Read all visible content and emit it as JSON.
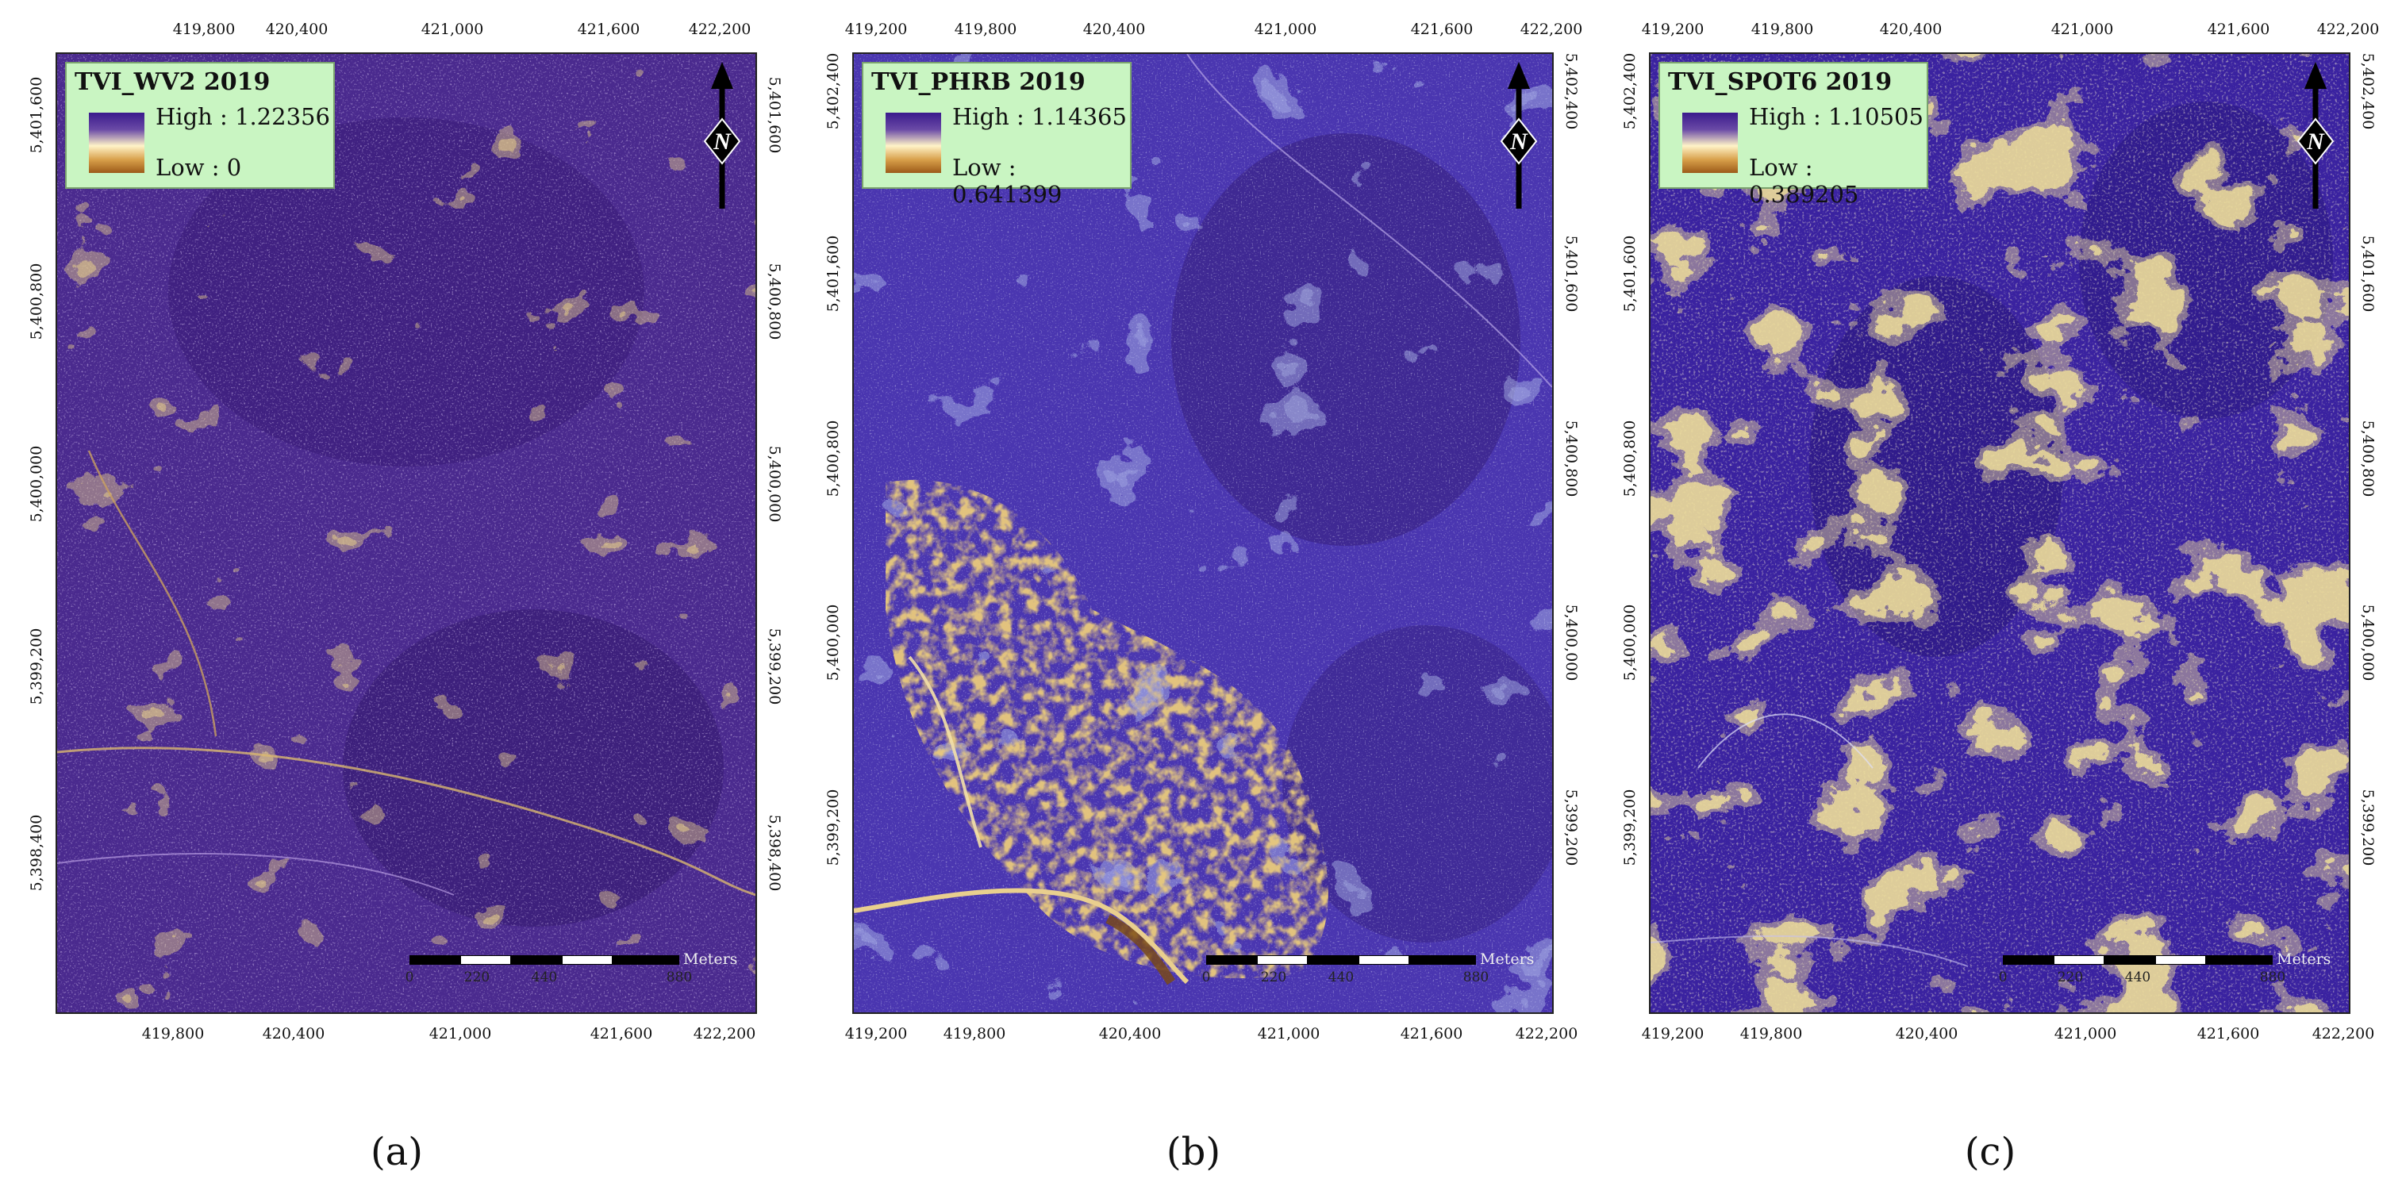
{
  "panels": [
    {
      "legend_title": "TVI_WV2 2019",
      "high_label": "High : 1.22356",
      "low_label": "Low : 0",
      "caption": "(a)",
      "top_ticks": [
        "419,800",
        "420,400",
        "421,000",
        "421,600",
        "422,200"
      ],
      "bottom_ticks": [
        "419,800",
        "420,400",
        "421,000",
        "421,600",
        "422,200"
      ],
      "left_ticks": [
        "5,401,600",
        "5,400,800",
        "5,400,000",
        "5,399,200",
        "5,398,400"
      ],
      "right_ticks": [
        "5,401,600",
        "5,400,800",
        "5,400,000",
        "5,399,200",
        "5,398,400"
      ],
      "scale_labels": [
        "0",
        "220",
        "440",
        "880"
      ],
      "scale_units": "Meters",
      "north_label": "N"
    },
    {
      "legend_title": "TVI_PHRB 2019",
      "high_label": "High : 1.14365",
      "low_label": "Low : 0.641399",
      "caption": "(b)",
      "top_ticks": [
        "419,200",
        "419,800",
        "420,400",
        "421,000",
        "421,600",
        "422,200"
      ],
      "bottom_ticks": [
        "419,200",
        "419,800",
        "420,400",
        "421,000",
        "421,600",
        "422,200"
      ],
      "left_ticks": [
        "5,402,400",
        "5,401,600",
        "5,400,800",
        "5,400,000",
        "5,399,200"
      ],
      "right_ticks": [
        "5,402,400",
        "5,401,600",
        "5,400,800",
        "5,400,000",
        "5,399,200"
      ],
      "scale_labels": [
        "0",
        "220",
        "440",
        "880"
      ],
      "scale_units": "Meters",
      "north_label": "N"
    },
    {
      "legend_title": "TVI_SPOT6 2019",
      "high_label": "High : 1.10505",
      "low_label": "Low : 0.389205",
      "caption": "(c)",
      "top_ticks": [
        "419,200",
        "419,800",
        "420,400",
        "421,000",
        "421,600",
        "422,200"
      ],
      "bottom_ticks": [
        "419,200",
        "419,800",
        "420,400",
        "421,000",
        "421,600",
        "422,200"
      ],
      "left_ticks": [
        "5,402,400",
        "5,401,600",
        "5,400,800",
        "5,400,000",
        "5,399,200"
      ],
      "right_ticks": [
        "5,402,400",
        "5,401,600",
        "5,400,800",
        "5,400,000",
        "5,399,200"
      ],
      "scale_labels": [
        "0",
        "220",
        "440",
        "880"
      ],
      "scale_units": "Meters",
      "north_label": "N"
    }
  ],
  "colors": {
    "high": "#3a1a8c",
    "mid": "#fff3c8",
    "low": "#9c5a18",
    "legend_bg": "#c9f5c2"
  }
}
